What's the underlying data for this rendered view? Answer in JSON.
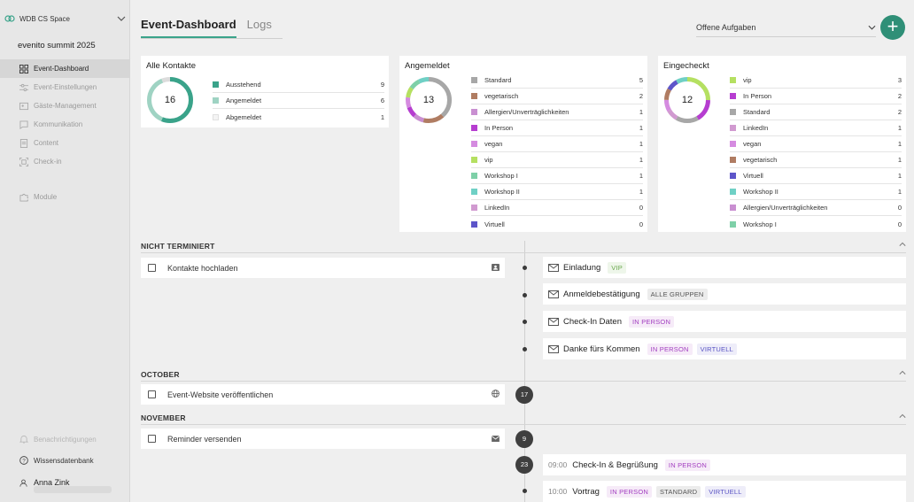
{
  "sidebar": {
    "workspace": "WDB CS Space",
    "event_name": "evenito summit 2025",
    "nav": [
      {
        "label": "Event-Dashboard",
        "icon": "dashboard-icon"
      },
      {
        "label": "Event-Einstellungen",
        "icon": "sliders-icon"
      },
      {
        "label": "Gäste-Management",
        "icon": "guests-icon"
      },
      {
        "label": "Kommunikation",
        "icon": "chat-icon"
      },
      {
        "label": "Content",
        "icon": "content-icon"
      },
      {
        "label": "Check-in",
        "icon": "qr-icon"
      }
    ],
    "modules": "Module",
    "bottom": {
      "notifications": "Benachrichtigungen",
      "knowledge": "Wissensdatenbank",
      "user": "Anna Zink"
    }
  },
  "tabs": [
    "Event-Dashboard",
    "Logs"
  ],
  "filter": {
    "value": "Offene Aufgaben"
  },
  "add_button": "+",
  "cards": {
    "contacts": {
      "title": "Alle Kontakte",
      "total": "16",
      "items": [
        {
          "label": "Ausstehend",
          "value": 9,
          "color": "#3aa38a"
        },
        {
          "label": "Angemeldet",
          "value": 6,
          "color": "#9fd3c3"
        },
        {
          "label": "Abgemeldet",
          "value": 1,
          "color": "#f4f4f4"
        }
      ]
    },
    "registered": {
      "title": "Angemeldet",
      "total": "13",
      "items": [
        {
          "label": "Standard",
          "value": 5,
          "color": "#a7a7a7"
        },
        {
          "label": "vegetarisch",
          "value": 2,
          "color": "#b07c62"
        },
        {
          "label": "Allergien/Unverträglichkeiten",
          "value": 1,
          "color": "#c98fd1"
        },
        {
          "label": "In Person",
          "value": 1,
          "color": "#b63dd0"
        },
        {
          "label": "vegan",
          "value": 1,
          "color": "#d58be0"
        },
        {
          "label": "vip",
          "value": 1,
          "color": "#b5e061"
        },
        {
          "label": "Workshop I",
          "value": 1,
          "color": "#7ed0a8"
        },
        {
          "label": "Workshop II",
          "value": 1,
          "color": "#6fd0c5"
        },
        {
          "label": "LinkedIn",
          "value": 0,
          "color": "#d19ad0"
        },
        {
          "label": "Virtuell",
          "value": 0,
          "color": "#5d55c9"
        }
      ]
    },
    "checked_in": {
      "title": "Eingecheckt",
      "total": "12",
      "items": [
        {
          "label": "vip",
          "value": 3,
          "color": "#b5e061"
        },
        {
          "label": "In Person",
          "value": 2,
          "color": "#b63dd0"
        },
        {
          "label": "Standard",
          "value": 2,
          "color": "#a7a7a7"
        },
        {
          "label": "LinkedIn",
          "value": 1,
          "color": "#d19ad0"
        },
        {
          "label": "vegan",
          "value": 1,
          "color": "#d58be0"
        },
        {
          "label": "vegetarisch",
          "value": 1,
          "color": "#b07c62"
        },
        {
          "label": "Virtuell",
          "value": 1,
          "color": "#5d55c9"
        },
        {
          "label": "Workshop II",
          "value": 1,
          "color": "#6fd0c5"
        },
        {
          "label": "Allergien/Unverträglichkeiten",
          "value": 0,
          "color": "#c98fd1"
        },
        {
          "label": "Workshop I",
          "value": 0,
          "color": "#7ed0a8"
        }
      ]
    }
  },
  "sections": {
    "unscheduled": "NICHT TERMINIERT",
    "october": "OCTOBER",
    "november": "NOVEMBER"
  },
  "tasks": {
    "upload_contacts": "Kontakte hochladen",
    "publish_website": "Event-Website veröffentlichen",
    "send_reminder": "Reminder versenden"
  },
  "mails": [
    {
      "title": "Einladung",
      "tags": [
        {
          "label": "VIP",
          "color": "#6aa84f",
          "bg": "#eef6ea"
        }
      ]
    },
    {
      "title": "Anmeldebestätigung",
      "tags": [
        {
          "label": "ALLE GRUPPEN",
          "color": "#555555",
          "bg": "#ececec"
        }
      ]
    },
    {
      "title": "Check-In Daten",
      "tags": [
        {
          "label": "IN PERSON",
          "color": "#a23ec0",
          "bg": "#f6ebf8"
        }
      ]
    },
    {
      "title": "Danke fürs Kommen",
      "tags": [
        {
          "label": "IN PERSON",
          "color": "#a23ec0",
          "bg": "#f6ebf8"
        },
        {
          "label": "VIRTUELL",
          "color": "#5a54c4",
          "bg": "#eeedf9"
        }
      ]
    }
  ],
  "dates": {
    "oct": "17",
    "nov_a": "9",
    "nov_b": "23"
  },
  "sessions": [
    {
      "time": "09:00",
      "title": "Check-In & Begrüßung",
      "tags": [
        {
          "label": "IN PERSON",
          "color": "#a23ec0",
          "bg": "#f6ebf8"
        }
      ]
    },
    {
      "time": "10:00",
      "title": "Vortrag",
      "tags": [
        {
          "label": "IN PERSON",
          "color": "#a23ec0",
          "bg": "#f6ebf8"
        },
        {
          "label": "STANDARD",
          "color": "#555555",
          "bg": "#ececec"
        },
        {
          "label": "VIRTUELL",
          "color": "#5a54c4",
          "bg": "#eeedf9"
        }
      ]
    }
  ]
}
